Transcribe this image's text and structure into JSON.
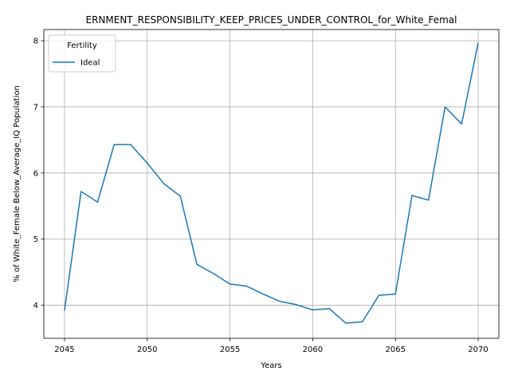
{
  "chart_data": {
    "type": "line",
    "title": "ERNMENT_RESPONSIBILITY_KEEP_PRICES_UNDER_CONTROL_for_White_Femal",
    "xlabel": "Years",
    "ylabel": "% of White_Female Below_Average_IQ Population",
    "xlim": [
      2043.75,
      2071.25
    ],
    "ylim": [
      3.5,
      8.17
    ],
    "xticks": [
      2045,
      2050,
      2055,
      2060,
      2065,
      2070
    ],
    "yticks": [
      4,
      5,
      6,
      7,
      8
    ],
    "grid": true,
    "legend": {
      "title": "Fertility",
      "placement": "top-left"
    },
    "series": [
      {
        "name": "Ideal",
        "color": "#1f77b4",
        "x": [
          2045,
          2046,
          2047,
          2048,
          2049,
          2050,
          2051,
          2052,
          2053,
          2054,
          2055,
          2056,
          2057,
          2058,
          2059,
          2060,
          2061,
          2062,
          2063,
          2064,
          2065,
          2066,
          2067,
          2068,
          2069,
          2070
        ],
        "y": [
          3.92,
          5.72,
          5.56,
          6.43,
          6.43,
          6.15,
          5.84,
          5.65,
          4.62,
          4.48,
          4.32,
          4.29,
          4.17,
          4.06,
          4.01,
          3.93,
          3.95,
          3.73,
          3.75,
          4.15,
          4.17,
          5.66,
          5.59,
          7.0,
          6.74,
          7.97
        ]
      }
    ]
  }
}
